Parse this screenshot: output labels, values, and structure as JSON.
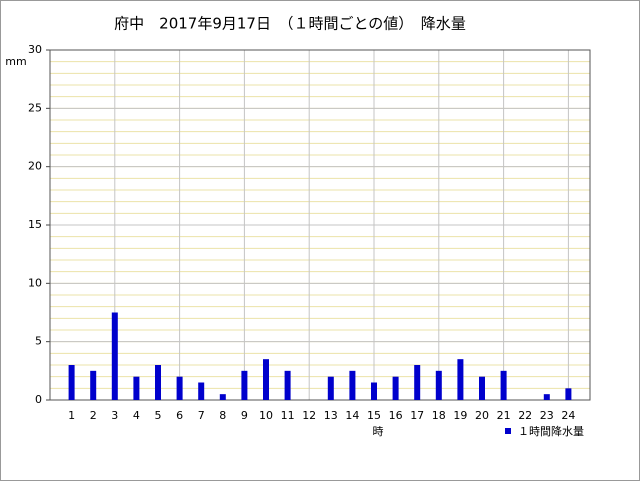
{
  "chart_data": {
    "type": "bar",
    "title": "府中　2017年9月17日　（１時間ごとの値）　降水量",
    "y_unit": "mm",
    "x_label": "時",
    "categories": [
      "1",
      "2",
      "3",
      "4",
      "5",
      "6",
      "7",
      "8",
      "9",
      "10",
      "11",
      "12",
      "13",
      "14",
      "15",
      "16",
      "17",
      "18",
      "19",
      "20",
      "21",
      "22",
      "23",
      "24"
    ],
    "series": [
      {
        "name": "１時間降水量",
        "color": "#0000cc",
        "values": [
          3,
          2.5,
          7.5,
          2,
          3,
          2,
          1.5,
          0.5,
          2.5,
          3.5,
          2.5,
          0,
          2,
          2.5,
          1.5,
          2,
          3,
          2.5,
          3.5,
          2,
          2.5,
          0,
          0.5,
          1
        ]
      }
    ],
    "ylim": [
      0,
      30
    ],
    "yticks": [
      0,
      5,
      10,
      15,
      20,
      25,
      30
    ],
    "grid": true
  }
}
